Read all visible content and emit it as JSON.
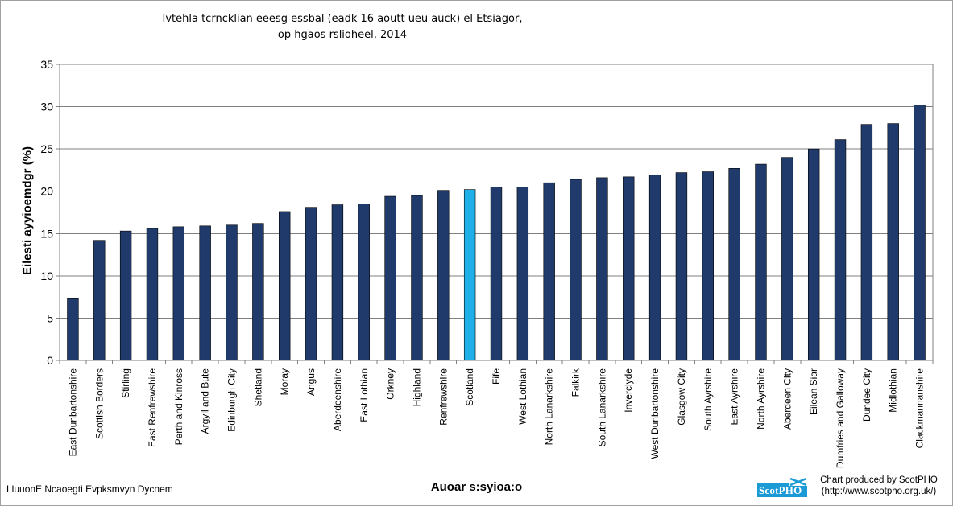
{
  "chart_data": {
    "type": "bar",
    "title_lines": [
      "Ivtehla tcrncklian eeesg essbal (eadk 16 aoutt ueu auck) el Etsiagor,",
      "op hgaos rslioheel, 2014"
    ],
    "xlabel": "Auoar s:syioa:o",
    "ylabel": "Eilesti ayyioemdgr (%)",
    "ylim": [
      0,
      35
    ],
    "yticks": [
      0,
      5,
      10,
      15,
      20,
      25,
      30,
      35
    ],
    "grid": true,
    "legend": "none",
    "categories": [
      "East Dunbartonshire",
      "Scottish Borders",
      "Stirling",
      "East Renfrewshire",
      "Perth and Kinross",
      "Argyll and Bute",
      "Edinburgh City",
      "Shetland",
      "Moray",
      "Angus",
      "Aberdeenshire",
      "East Lothian",
      "Orkney",
      "Highland",
      "Renfrewshire",
      "Scotland",
      "Fife",
      "West Lothian",
      "North Lanarkshire",
      "Falkirk",
      "South Lanarkshire",
      "Inverclyde",
      "West Dunbartonshire",
      "Glasgow City",
      "South Ayrshire",
      "East Ayrshire",
      "North Ayrshire",
      "Aberdeen City",
      "Eilean Siar",
      "Dumfries and Galloway",
      "Dundee City",
      "Midlothian",
      "Clackmannanshire"
    ],
    "values": [
      7.3,
      14.2,
      15.3,
      15.6,
      15.8,
      15.9,
      16.0,
      16.2,
      17.6,
      18.1,
      18.4,
      18.5,
      19.4,
      19.5,
      20.1,
      20.2,
      20.5,
      20.5,
      21.0,
      21.4,
      21.6,
      21.7,
      21.9,
      22.2,
      22.3,
      22.7,
      23.2,
      24.0,
      25.0,
      26.1,
      27.9,
      28.0,
      30.2
    ],
    "highlight_category": "Scotland",
    "bar_color": "#1f3a6b",
    "highlight_color": "#1eaee8",
    "plot_background": "#ffffff",
    "grid_color": "#7f7f7f"
  },
  "footer": {
    "left_text": "LluuonE Ncaoegti Evpksmvyn Dycnem",
    "credit_line1": "Chart produced by ScotPHO",
    "credit_line2": "(http://www.scotpho.org.uk/)",
    "logo_text": "ScotPHO",
    "logo_color": "#1b9ad6"
  }
}
